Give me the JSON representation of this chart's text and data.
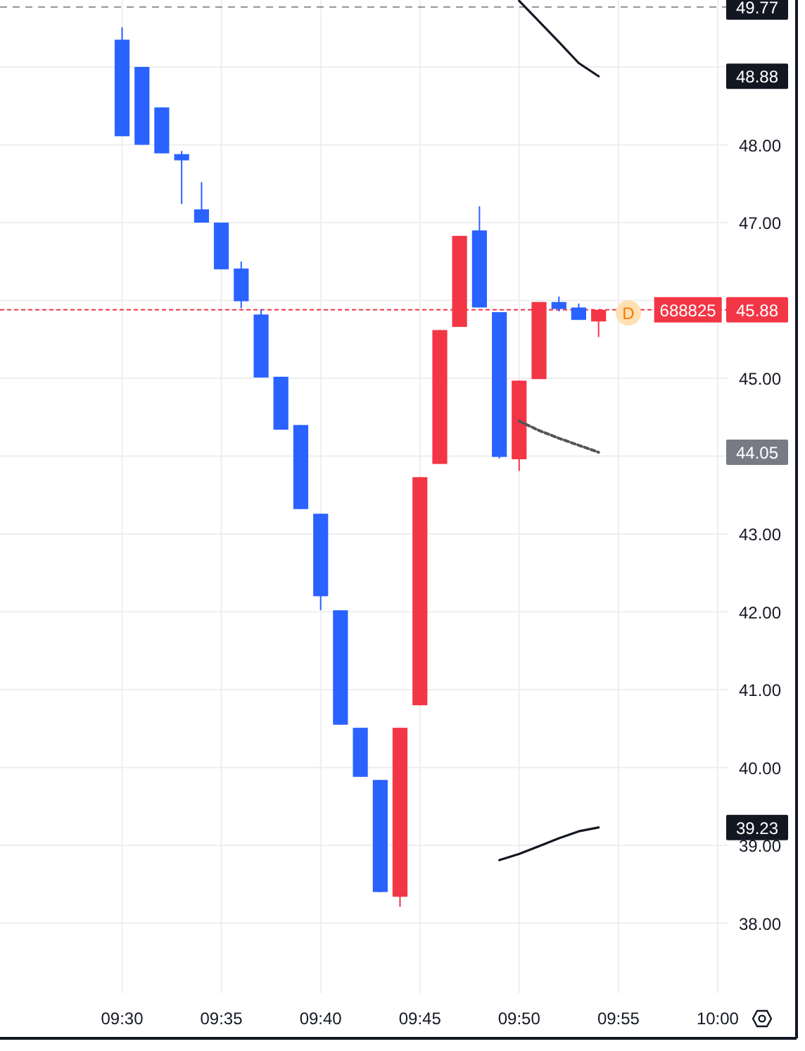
{
  "chart_data": {
    "type": "candlestick",
    "x": [
      9.5,
      9.5167,
      9.5333,
      9.55,
      9.5667,
      9.5833,
      9.6,
      9.6167,
      9.6333,
      9.65,
      9.6667,
      9.6833,
      9.7,
      9.7167,
      9.7333,
      9.75,
      9.7667,
      9.7833,
      9.8,
      9.8167,
      9.8333,
      9.85,
      9.8667,
      9.8833,
      9.9
    ],
    "ohlc": [
      [
        49.35,
        49.51,
        48.11,
        48.11
      ],
      [
        49.0,
        49.0,
        48.0,
        48.0
      ],
      [
        48.48,
        48.48,
        47.89,
        47.89
      ],
      [
        47.88,
        47.92,
        47.24,
        47.8
      ],
      [
        47.17,
        47.52,
        47.0,
        47.0
      ],
      [
        47.0,
        47.0,
        46.4,
        46.4
      ],
      [
        46.41,
        46.5,
        45.9,
        45.99
      ],
      [
        45.82,
        45.89,
        45.01,
        45.01
      ],
      [
        45.02,
        45.02,
        44.34,
        44.34
      ],
      [
        44.4,
        44.4,
        43.32,
        43.32
      ],
      [
        43.26,
        43.26,
        42.02,
        42.2
      ],
      [
        42.02,
        42.02,
        40.55,
        40.55
      ],
      [
        40.51,
        40.51,
        39.88,
        39.88
      ],
      [
        39.84,
        39.84,
        38.4,
        38.4
      ],
      [
        38.34,
        40.51,
        38.21,
        40.51
      ],
      [
        40.8,
        43.73,
        40.8,
        43.73
      ],
      [
        43.9,
        45.62,
        43.9,
        45.62
      ],
      [
        45.66,
        46.83,
        45.66,
        46.83
      ],
      [
        46.9,
        47.21,
        45.91,
        45.91
      ],
      [
        45.85,
        45.85,
        43.97,
        43.99
      ],
      [
        43.96,
        44.97,
        43.81,
        44.97
      ],
      [
        44.99,
        45.98,
        44.99,
        45.98
      ],
      [
        45.98,
        46.05,
        45.86,
        45.89
      ],
      [
        45.91,
        45.96,
        45.75,
        45.75
      ],
      [
        45.73,
        45.88,
        45.53,
        45.88
      ]
    ],
    "colors": [
      "#2962ff",
      "#2962ff",
      "#2962ff",
      "#2962ff",
      "#2962ff",
      "#2962ff",
      "#2962ff",
      "#2962ff",
      "#2962ff",
      "#2962ff",
      "#2962ff",
      "#2962ff",
      "#2962ff",
      "#2962ff",
      "#f23645",
      "#f23645",
      "#f23645",
      "#f23645",
      "#2962ff",
      "#2962ff",
      "#f23645",
      "#f23645",
      "#2962ff",
      "#2962ff",
      "#f23645"
    ],
    "series": [
      {
        "type": "line",
        "color": "#131722",
        "line_style": "solid",
        "x": [
          9.8333,
          9.8667,
          9.8833,
          9.9
        ],
        "values": [
          49.85,
          49.32,
          49.05,
          48.88
        ]
      },
      {
        "type": "line",
        "color": "#555555",
        "line_style": "dotted",
        "x": [
          9.8333,
          9.85,
          9.8667,
          9.8833,
          9.9
        ],
        "values": [
          44.45,
          44.33,
          44.23,
          44.14,
          44.05
        ]
      },
      {
        "type": "line",
        "color": "#131722",
        "line_style": "solid",
        "x": [
          9.8167,
          9.8333,
          9.85,
          9.8667,
          9.8833,
          9.9
        ],
        "values": [
          38.81,
          38.89,
          38.99,
          39.09,
          39.18,
          39.23
        ]
      }
    ],
    "y2lim": [
      37.1,
      49.86
    ],
    "y2ticks": [
      48.88,
      44.05,
      39.23
    ],
    "xlim": [
      9.3975,
      10.0083
    ],
    "ylim": [
      37.1,
      49.86
    ],
    "xticks": [
      {
        "value": 9.5,
        "label": "09:30"
      },
      {
        "value": 9.5833,
        "label": "09:35"
      },
      {
        "value": 9.6667,
        "label": "09:40"
      },
      {
        "value": 9.75,
        "label": "09:45"
      },
      {
        "value": 9.8333,
        "label": "09:50"
      },
      {
        "value": 9.9167,
        "label": "09:55"
      },
      {
        "value": 10,
        "label": "10:00"
      }
    ],
    "yticks": [
      {
        "value": 38,
        "label": "38.00"
      },
      {
        "value": 39,
        "label": "39.00"
      },
      {
        "value": 40,
        "label": "40.00"
      },
      {
        "value": 41,
        "label": "41.00"
      },
      {
        "value": 42,
        "label": "42.00"
      },
      {
        "value": 43,
        "label": "43.00"
      },
      {
        "value": 44,
        "label": null
      },
      {
        "value": 45,
        "label": "45.00"
      },
      {
        "value": 46,
        "label": null
      },
      {
        "value": 47,
        "label": "47.00"
      },
      {
        "value": 48,
        "label": "48.00"
      },
      {
        "value": 49,
        "label": null
      }
    ],
    "grid": true,
    "ref_lines": [
      {
        "axis": "y",
        "value": 49.77,
        "label": "49.77",
        "color": "#131722",
        "line_style": "dashed"
      },
      {
        "axis": "y",
        "value": 45.88,
        "label": "45.88",
        "color": "#f23645",
        "line_style": "dotted"
      }
    ],
    "annotations": [
      {
        "text": "688825",
        "x": 9.975,
        "y": 45.88
      },
      {
        "text": "D",
        "x": 9.925,
        "y": 45.84
      }
    ]
  }
}
